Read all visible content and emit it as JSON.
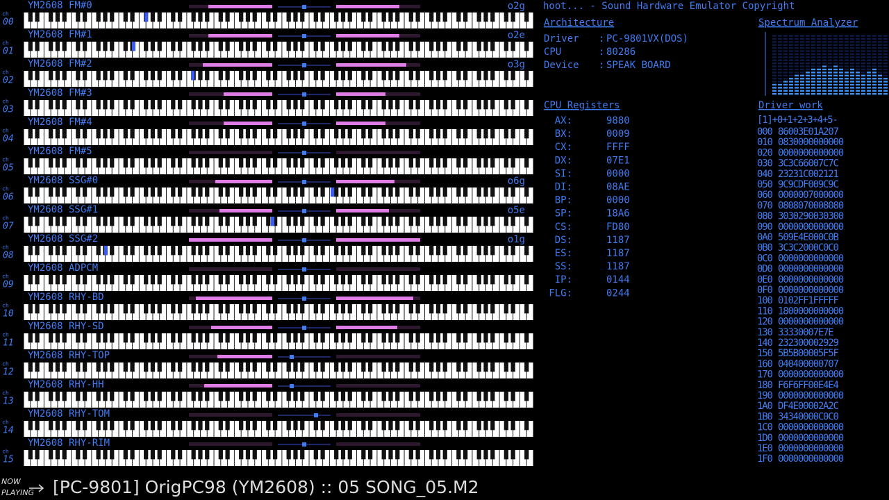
{
  "channel_prefix": "ch",
  "channels": [
    {
      "number": "00",
      "label": "YM2608 FM#0",
      "note": "o2g"
    },
    {
      "number": "01",
      "label": "YM2608 FM#1",
      "note": "o2e"
    },
    {
      "number": "02",
      "label": "YM2608 FM#2",
      "note": "o3g"
    },
    {
      "number": "03",
      "label": "YM2608 FM#3"
    },
    {
      "number": "04",
      "label": "YM2608 FM#4"
    },
    {
      "number": "05",
      "label": "YM2608 FM#5"
    },
    {
      "number": "06",
      "label": "YM2608 SSG#0",
      "note": "o6g"
    },
    {
      "number": "07",
      "label": "YM2608 SSG#1",
      "note": "o5e"
    },
    {
      "number": "08",
      "label": "YM2608 SSG#2",
      "note": "o1g"
    },
    {
      "number": "09",
      "label": "YM2608 ADPCM"
    },
    {
      "number": "10",
      "label": "YM2608 RHY-BD"
    },
    {
      "number": "11",
      "label": "YM2608 RHY-SD"
    },
    {
      "number": "12",
      "label": "YM2608 RHY-TOP"
    },
    {
      "number": "13",
      "label": "YM2608 RHY-HH"
    },
    {
      "number": "14",
      "label": "YM2608 RHY-TOM"
    },
    {
      "number": "15",
      "label": "YM2608 RHY-RIM"
    }
  ],
  "header": {
    "title": "hoot... - Sound Hardware Emulator Copyright"
  },
  "architecture": {
    "heading": "Architecture",
    "separator": ":",
    "items": [
      {
        "label": "Driver",
        "value": "PC-9801VX(DOS)"
      },
      {
        "label": "CPU",
        "value": "80286"
      },
      {
        "label": "Device",
        "value": "SPEAK BOARD"
      }
    ]
  },
  "cpu_registers": {
    "heading": "CPU Registers",
    "items": [
      {
        "label": "AX:",
        "value": "9880"
      },
      {
        "label": "BX:",
        "value": "0009"
      },
      {
        "label": "CX:",
        "value": "FFFF"
      },
      {
        "label": "DX:",
        "value": "07E1"
      },
      {
        "label": "SI:",
        "value": "0000"
      },
      {
        "label": "DI:",
        "value": "08AE"
      },
      {
        "label": "BP:",
        "value": "0000"
      },
      {
        "label": "SP:",
        "value": "18A6"
      },
      {
        "label": "CS:",
        "value": "FD80"
      },
      {
        "label": "DS:",
        "value": "1187"
      },
      {
        "label": "ES:",
        "value": "1187"
      },
      {
        "label": "SS:",
        "value": "1187"
      },
      {
        "label": "IP:",
        "value": "0144"
      },
      {
        "label": "FLG:",
        "value": "0244"
      }
    ]
  },
  "spectrum_analyzer": {
    "heading": "Spectrum Analyzer"
  },
  "driver_work": {
    "heading": "Driver work",
    "columns": "[1]+0+1+2+3+4+5-",
    "rows": [
      {
        "address": "000",
        "bytes": "86003E01A207"
      },
      {
        "address": "010",
        "bytes": "0830000000000"
      },
      {
        "address": "020",
        "bytes": "0000000000000"
      },
      {
        "address": "030",
        "bytes": "3C3C66007C7C"
      },
      {
        "address": "040",
        "bytes": "23231C002121"
      },
      {
        "address": "050",
        "bytes": "9C9CDF009C9C"
      },
      {
        "address": "060",
        "bytes": "0000007000000"
      },
      {
        "address": "070",
        "bytes": "0808070008080"
      },
      {
        "address": "080",
        "bytes": "3030290030300"
      },
      {
        "address": "090",
        "bytes": "0000000000000"
      },
      {
        "address": "0A0",
        "bytes": "509E4E000C0B"
      },
      {
        "address": "0B0",
        "bytes": "3C3C2000C0C0"
      },
      {
        "address": "0C0",
        "bytes": "0000000000000"
      },
      {
        "address": "0D0",
        "bytes": "0000000000000"
      },
      {
        "address": "0E0",
        "bytes": "0000000000000"
      },
      {
        "address": "0F0",
        "bytes": "0000000000000"
      },
      {
        "address": "100",
        "bytes": "0102FF1FFFFF"
      },
      {
        "address": "110",
        "bytes": "1800000000000"
      },
      {
        "address": "120",
        "bytes": "0000000000000"
      },
      {
        "address": "130",
        "bytes": "33330007E7E"
      },
      {
        "address": "140",
        "bytes": "232300002929"
      },
      {
        "address": "150",
        "bytes": "5B5B00005F5F"
      },
      {
        "address": "160",
        "bytes": "040400000707"
      },
      {
        "address": "170",
        "bytes": "0000000000000"
      },
      {
        "address": "180",
        "bytes": "F6F6FF00E4E4"
      },
      {
        "address": "190",
        "bytes": "0000000000000"
      },
      {
        "address": "1A0",
        "bytes": "DF4E00002A2C"
      },
      {
        "address": "1B0",
        "bytes": "34340000C0C0"
      },
      {
        "address": "1C0",
        "bytes": "0000000000000"
      },
      {
        "address": "1D0",
        "bytes": "0000000000000"
      },
      {
        "address": "1E0",
        "bytes": "0000000000000"
      },
      {
        "address": "1F0",
        "bytes": "0000000000000"
      }
    ]
  },
  "now_playing": {
    "line1": "NOW",
    "line2": "PLAYING",
    "track": "[PC-9801] OrigPC98 (YM2608) :: 05 SONG_05.M2"
  }
}
